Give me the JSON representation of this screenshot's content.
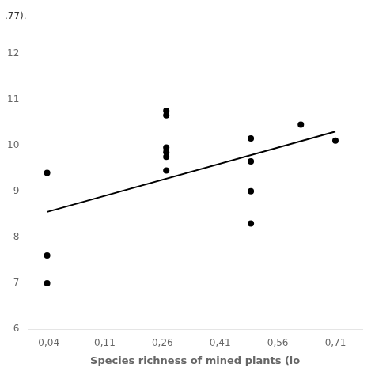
{
  "chart_data": {
    "type": "scatter",
    "x_label": "Species richness of mined plants (lo",
    "annotations": [
      ".77)."
    ],
    "series": [
      {
        "type": "scatter",
        "marker": "circle",
        "color": "#000000",
        "x": [
          -0.04,
          -0.04,
          -0.04,
          0.27,
          0.27,
          0.27,
          0.27,
          0.27,
          0.27,
          0.49,
          0.49,
          0.49,
          0.49,
          0.62,
          0.71
        ],
        "values": [
          9.4,
          7.6,
          7.0,
          10.75,
          10.65,
          9.95,
          9.85,
          9.75,
          9.45,
          10.15,
          9.65,
          9.0,
          8.3,
          10.45,
          10.1
        ]
      },
      {
        "type": "line",
        "line_style": "solid",
        "color": "#000000",
        "x": [
          -0.04,
          0.71
        ],
        "values": [
          8.55,
          10.3
        ]
      }
    ],
    "xlim": [
      -0.09,
      0.78
    ],
    "xticks": [
      {
        "value": -0.04,
        "label": "-0,04"
      },
      {
        "value": 0.11,
        "label": "0,11"
      },
      {
        "value": 0.26,
        "label": "0,26"
      },
      {
        "value": 0.41,
        "label": "0,41"
      },
      {
        "value": 0.56,
        "label": "0,56"
      },
      {
        "value": 0.71,
        "label": "0,71"
      }
    ],
    "ylim": [
      6,
      12.5
    ],
    "yticks": [
      6,
      7,
      8,
      9,
      10,
      11,
      12
    ],
    "grid": false
  }
}
